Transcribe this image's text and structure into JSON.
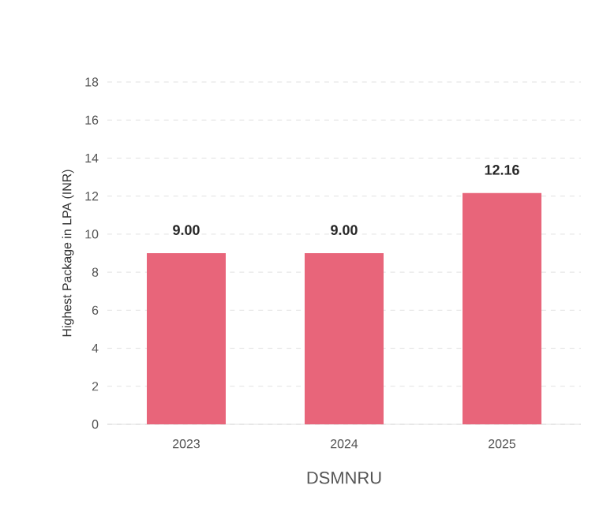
{
  "chart_data": {
    "type": "bar",
    "xlabel": "DSMNRU",
    "ylabel": "Highest Package in LPA (INR)",
    "categories": [
      "2023",
      "2024",
      "2025"
    ],
    "values": [
      9.0,
      9.0,
      12.16
    ],
    "value_labels": [
      "9.00",
      "9.00",
      "12.16"
    ],
    "color": "#e8657a",
    "ylim": [
      0,
      18
    ],
    "yticks": [
      0,
      2,
      4,
      6,
      8,
      10,
      12,
      14,
      16,
      18
    ],
    "grid": "y"
  }
}
